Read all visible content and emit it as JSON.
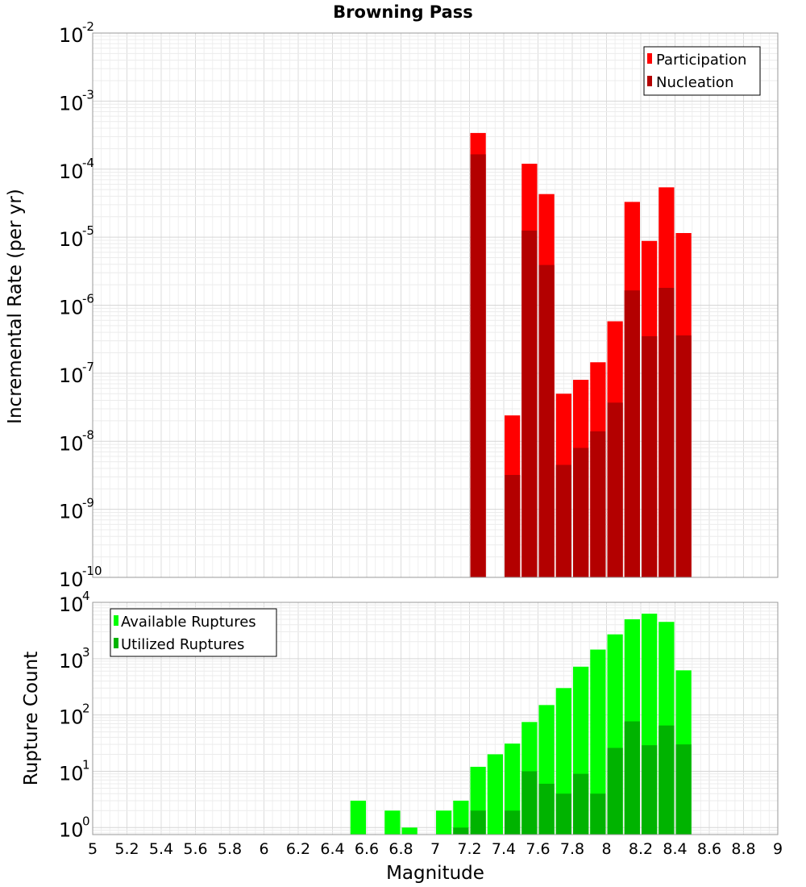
{
  "chart_data": [
    {
      "type": "bar",
      "title": "Browning Pass",
      "xlabel": "",
      "ylabel": "Incremental Rate (per yr)",
      "yscale": "log",
      "ylim": [
        1e-10,
        0.01
      ],
      "xlim": [
        5,
        9
      ],
      "bin_width": 0.1,
      "y_ticks": [
        {
          "base": "10",
          "exp": "-10"
        },
        {
          "base": "10",
          "exp": "-9"
        },
        {
          "base": "10",
          "exp": "-8"
        },
        {
          "base": "10",
          "exp": "-7"
        },
        {
          "base": "10",
          "exp": "-6"
        },
        {
          "base": "10",
          "exp": "-5"
        },
        {
          "base": "10",
          "exp": "-4"
        },
        {
          "base": "10",
          "exp": "-3"
        },
        {
          "base": "10",
          "exp": "-2"
        }
      ],
      "legend_position": "top-right",
      "series": [
        {
          "name": "Participation",
          "color": "#ff0000",
          "x": [
            7.25,
            7.45,
            7.55,
            7.65,
            7.75,
            7.85,
            7.95,
            8.05,
            8.15,
            8.25,
            8.35,
            8.45
          ],
          "values": [
            0.00034,
            2.4e-08,
            0.00012,
            4.3e-05,
            5e-08,
            8e-08,
            1.45e-07,
            5.8e-07,
            3.3e-05,
            8.8e-06,
            5.4e-05,
            1.15e-05
          ]
        },
        {
          "name": "Nucleation",
          "color": "#b30000",
          "x": [
            7.25,
            7.45,
            7.55,
            7.65,
            7.75,
            7.85,
            7.95,
            8.05,
            8.15,
            8.25,
            8.35,
            8.45
          ],
          "values": [
            0.000165,
            3.2e-09,
            1.25e-05,
            3.9e-06,
            4.5e-09,
            8e-09,
            1.4e-08,
            3.7e-08,
            1.65e-06,
            3.5e-07,
            1.8e-06,
            3.6e-07
          ]
        }
      ]
    },
    {
      "type": "bar",
      "title": "",
      "xlabel": "Magnitude",
      "ylabel": "Rupture Count",
      "yscale": "log",
      "ylim": [
        0.75,
        10000
      ],
      "xlim": [
        5,
        9
      ],
      "bin_width": 0.1,
      "x_ticks": [
        "5",
        "5.2",
        "5.4",
        "5.6",
        "5.8",
        "6",
        "6.2",
        "6.4",
        "6.6",
        "6.8",
        "7",
        "7.2",
        "7.4",
        "7.6",
        "7.8",
        "8",
        "8.2",
        "8.4",
        "8.6",
        "8.8",
        "9"
      ],
      "y_ticks": [
        {
          "base": "10",
          "exp": "0"
        },
        {
          "base": "10",
          "exp": "1"
        },
        {
          "base": "10",
          "exp": "2"
        },
        {
          "base": "10",
          "exp": "3"
        },
        {
          "base": "10",
          "exp": "4"
        }
      ],
      "legend_position": "top-left",
      "series": [
        {
          "name": "Available Ruptures",
          "color": "#00ff00",
          "x": [
            6.55,
            6.75,
            6.85,
            7.05,
            7.15,
            7.25,
            7.35,
            7.45,
            7.55,
            7.65,
            7.75,
            7.85,
            7.95,
            8.05,
            8.15,
            8.25,
            8.35,
            8.45
          ],
          "values": [
            3,
            2,
            1,
            2,
            3,
            12,
            20,
            31,
            75,
            150,
            300,
            720,
            1450,
            2700,
            5000,
            6300,
            4500,
            620
          ]
        },
        {
          "name": "Utilized Ruptures",
          "color": "#00b300",
          "x": [
            7.15,
            7.25,
            7.45,
            7.55,
            7.65,
            7.75,
            7.85,
            7.95,
            8.05,
            8.15,
            8.25,
            8.35,
            8.45
          ],
          "values": [
            1,
            2,
            2,
            10,
            6,
            4,
            9,
            4,
            26,
            77,
            29,
            65,
            30
          ]
        }
      ]
    }
  ]
}
